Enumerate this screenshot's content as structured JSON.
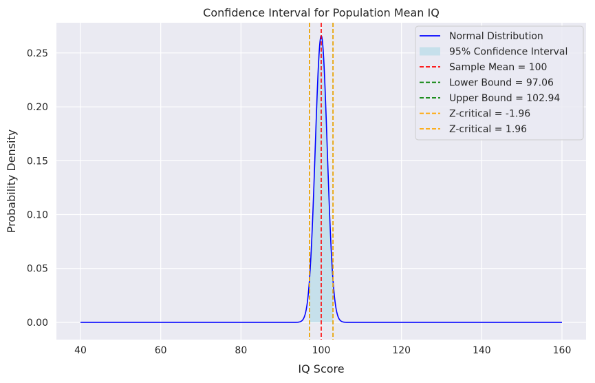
{
  "chart_data": {
    "type": "line",
    "title": "Confidence Interval for Population Mean IQ",
    "xlabel": "IQ Score",
    "ylabel": "Probability Density",
    "xlim": [
      34,
      166
    ],
    "ylim": [
      -0.016,
      0.278
    ],
    "xticks": [
      40,
      60,
      80,
      100,
      120,
      140,
      160
    ],
    "yticks": [
      0.0,
      0.05,
      0.1,
      0.15,
      0.2,
      0.25
    ],
    "ytick_labels": [
      "0.00",
      "0.05",
      "0.10",
      "0.15",
      "0.20",
      "0.25"
    ],
    "grid": true,
    "legend_position": "top-right",
    "series": [
      {
        "name": "Normal Distribution",
        "kind": "normal_pdf",
        "x_range": [
          40,
          160
        ],
        "mean": 100,
        "std": 1.5,
        "color": "#0000ff"
      }
    ],
    "shaded_interval": {
      "name": "95% Confidence Interval",
      "x": [
        97.06,
        102.94
      ],
      "color": "#add8e6"
    },
    "vlines": [
      {
        "name": "Sample Mean = 100",
        "x": 100,
        "color": "#ff0000"
      },
      {
        "name": "Lower Bound = 97.06",
        "x": 97.06,
        "color": "#008000"
      },
      {
        "name": "Upper Bound = 102.94",
        "x": 102.94,
        "color": "#008000"
      },
      {
        "name": "Z-critical = -1.96",
        "x": 97.06,
        "color": "#ffa500"
      },
      {
        "name": "Z-critical = 1.96",
        "x": 102.94,
        "color": "#ffa500"
      }
    ],
    "colors": {
      "plot_background": "#eaeaf2",
      "grid": "#ffffff"
    }
  }
}
